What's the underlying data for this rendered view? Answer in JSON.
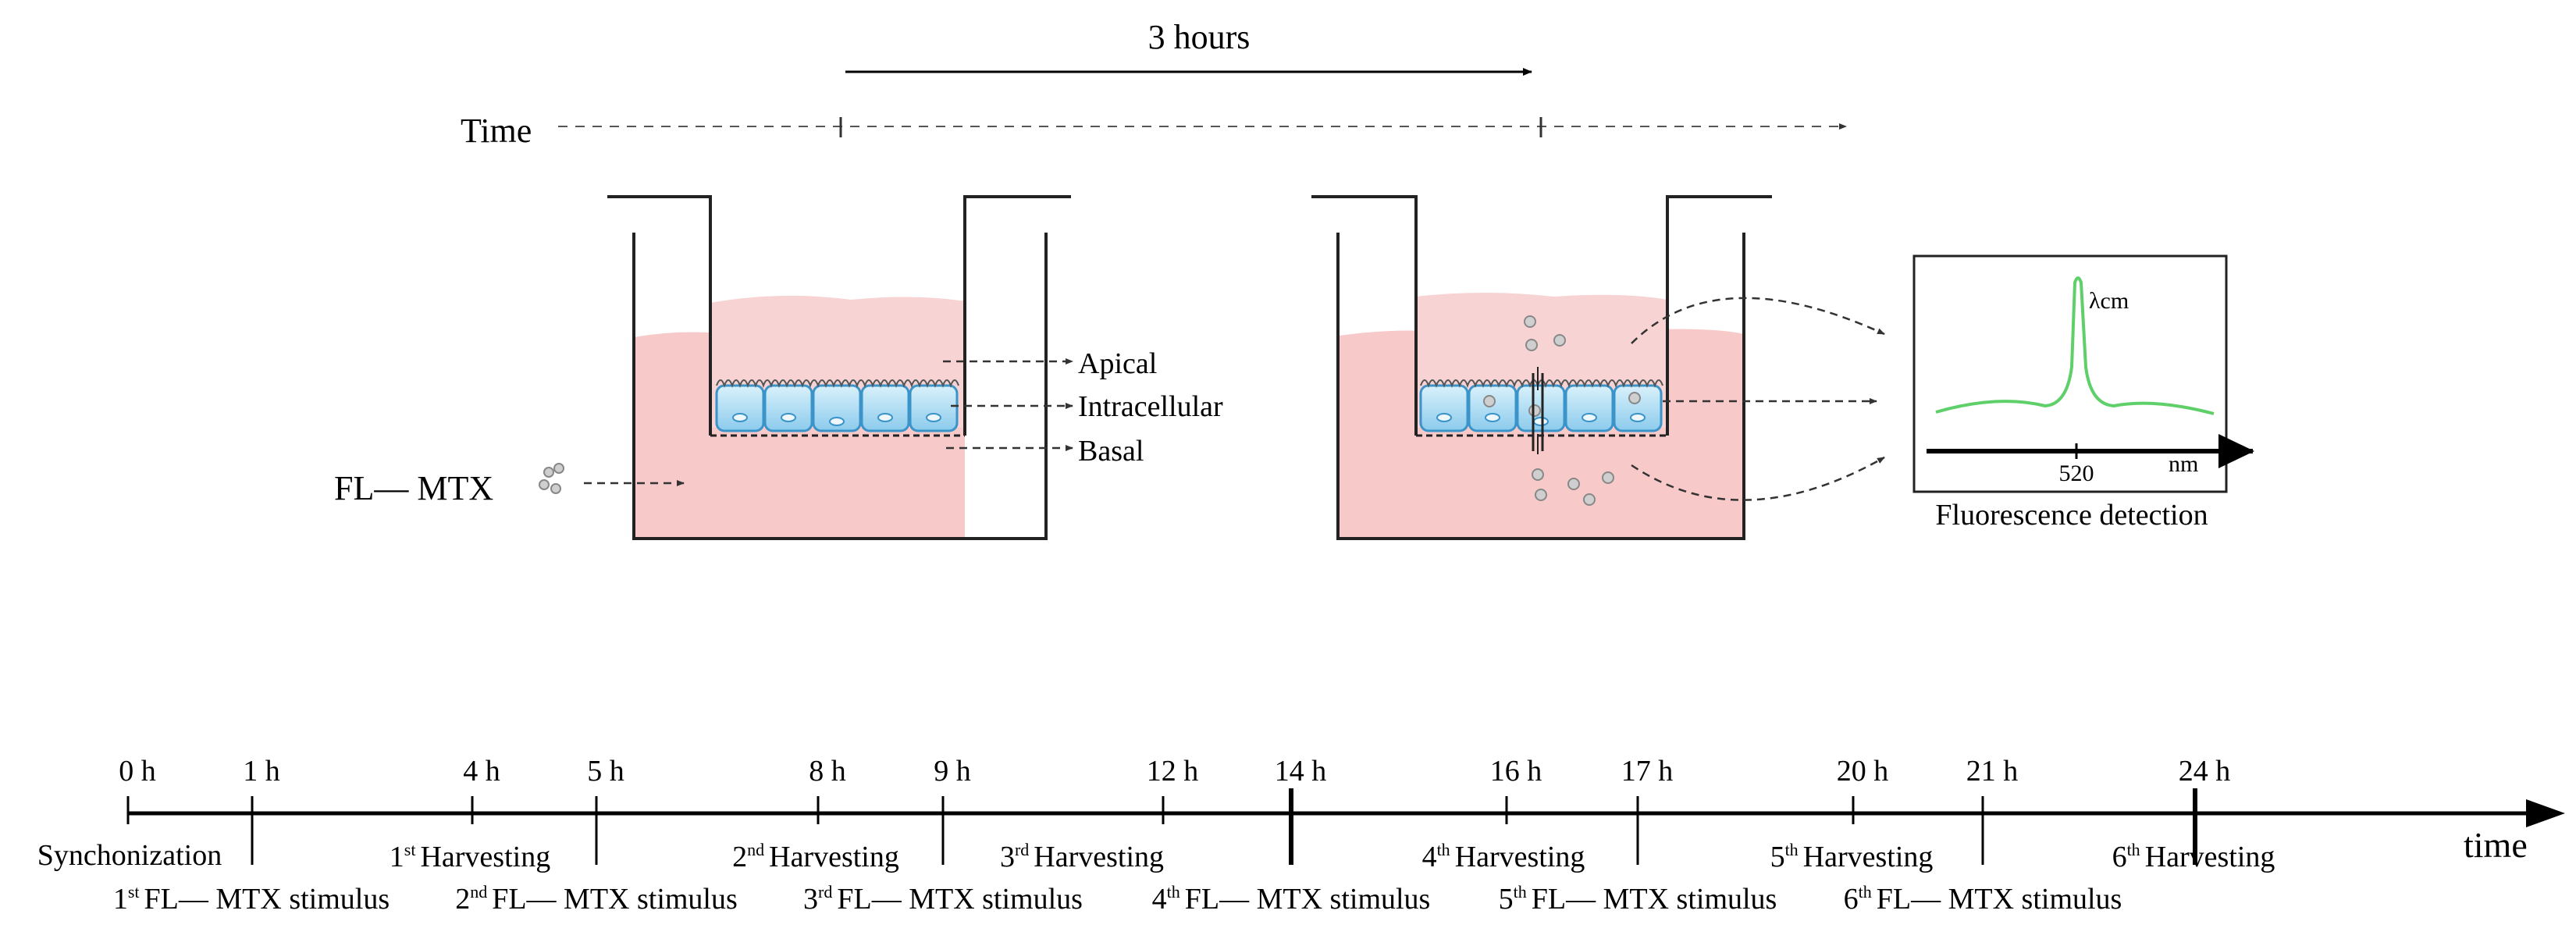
{
  "top": {
    "duration_label": "3 hours",
    "time_label": "Time"
  },
  "labels": {
    "apical": "Apical",
    "intracellular": "Intracellular",
    "basal": "Basal",
    "drug": "FL— MTX"
  },
  "spectrum": {
    "peak_label": "λcm",
    "wavelength": "520",
    "unit": "nm",
    "caption": "Fluorescence detection",
    "line_color": "#5fcf6a"
  },
  "colors": {
    "medium": "#f7c9c9",
    "cell": "#b8e2f6",
    "cell_border": "#3a93c9"
  },
  "timeline": {
    "axis_label": "time",
    "hours": [
      "0 h",
      "1 h",
      "4 h",
      "5 h",
      "8 h",
      "9 h",
      "12 h",
      "14 h",
      "16 h",
      "17 h",
      "20 h",
      "21 h",
      "24 h"
    ],
    "synchronization": "Synchonization",
    "harvesting": [
      {
        "ord": "1",
        "sup": "st",
        "text": "Harvesting"
      },
      {
        "ord": "2",
        "sup": "nd",
        "text": "Harvesting"
      },
      {
        "ord": "3",
        "sup": "rd",
        "text": "Harvesting"
      },
      {
        "ord": "4",
        "sup": "th",
        "text": "Harvesting"
      },
      {
        "ord": "5",
        "sup": "th",
        "text": "Harvesting"
      },
      {
        "ord": "6",
        "sup": "th",
        "text": "Harvesting"
      }
    ],
    "stimulus": [
      {
        "ord": "1",
        "sup": "st",
        "text": "FL— MTX stimulus"
      },
      {
        "ord": "2",
        "sup": "nd",
        "text": "FL— MTX stimulus"
      },
      {
        "ord": "3",
        "sup": "rd",
        "text": "FL— MTX stimulus"
      },
      {
        "ord": "4",
        "sup": "th",
        "text": "FL— MTX stimulus"
      },
      {
        "ord": "5",
        "sup": "th",
        "text": "FL— MTX stimulus"
      },
      {
        "ord": "6",
        "sup": "th",
        "text": "FL— MTX stimulus"
      }
    ]
  }
}
